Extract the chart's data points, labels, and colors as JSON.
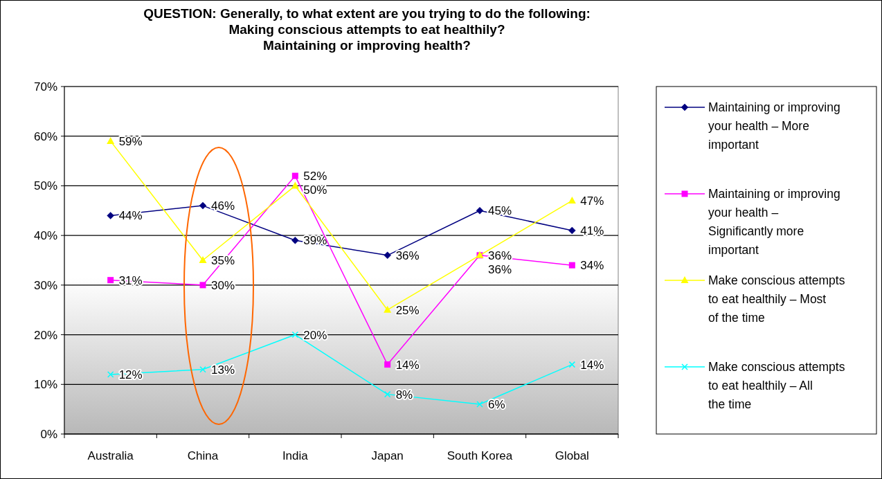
{
  "chart_data": {
    "type": "line",
    "title": "QUESTION: Generally, to what extent are you trying to do the following:\nMaking conscious attempts to eat healthily?\nMaintaining or improving health?",
    "categories": [
      "Australia",
      "China",
      "India",
      "Japan",
      "South Korea",
      "Global"
    ],
    "ylim": [
      0,
      70
    ],
    "yticks": [
      {
        "value": 0,
        "label": "0%"
      },
      {
        "value": 10,
        "label": "10%"
      },
      {
        "value": 20,
        "label": "20%"
      },
      {
        "value": 30,
        "label": "30%"
      },
      {
        "value": 40,
        "label": "40%"
      },
      {
        "value": 50,
        "label": "50%"
      },
      {
        "value": 60,
        "label": "60%"
      },
      {
        "value": 70,
        "label": "70%"
      }
    ],
    "grid": "y",
    "legend": "right",
    "series": [
      {
        "name": "Maintaining or improving your health – More important",
        "color": "#000080",
        "marker": "diamond",
        "values": [
          44,
          46,
          39,
          36,
          45,
          41
        ],
        "value_labels": [
          "44%",
          "46%",
          "39%",
          "36%",
          "45%",
          "41%"
        ]
      },
      {
        "name": "Maintaining or improving your health – Significantly more important",
        "color": "#ff00ff",
        "marker": "square",
        "values": [
          31,
          30,
          52,
          14,
          36,
          34
        ],
        "value_labels": [
          "31%",
          "30%",
          "52%",
          "14%",
          "36%",
          "34%"
        ]
      },
      {
        "name": "Make conscious attempts to eat healthily – Most of the time",
        "color": "#ffff00",
        "marker": "triangle",
        "values": [
          59,
          35,
          50,
          25,
          36,
          47
        ],
        "value_labels": [
          "59%",
          "35%",
          "50%",
          "25%",
          "36%",
          "47%"
        ]
      },
      {
        "name": "Make conscious attempts to eat healthily – All the time",
        "color": "#00ffff",
        "marker": "cross",
        "values": [
          12,
          13,
          20,
          8,
          6,
          14
        ],
        "value_labels": [
          "12%",
          "13%",
          "20%",
          "8%",
          "6%",
          "14%"
        ]
      }
    ]
  }
}
